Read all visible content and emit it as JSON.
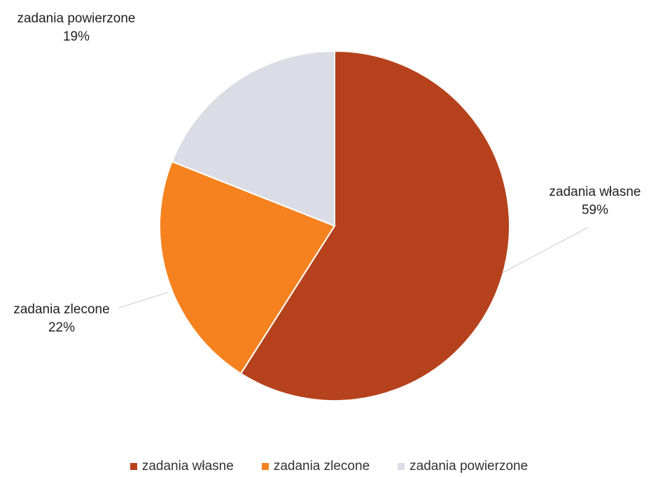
{
  "chart_data": {
    "type": "pie",
    "title": "",
    "slices": [
      {
        "label": "zadania własne",
        "value": 59,
        "percent_label": "59%",
        "color": "#b5421c"
      },
      {
        "label": "zadania zlecone",
        "value": 22,
        "percent_label": "22%",
        "color": "#f5821f"
      },
      {
        "label": "zadania powierzone",
        "value": 19,
        "percent_label": "19%",
        "color": "#dcdce6"
      }
    ],
    "legend_position": "bottom",
    "data_labels_outside": true
  }
}
